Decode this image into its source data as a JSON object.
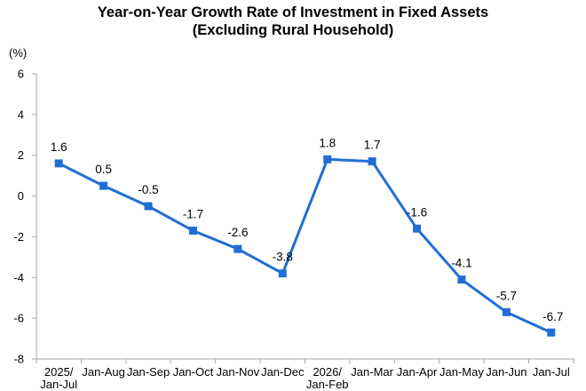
{
  "chart_data": {
    "type": "line",
    "title_lines": [
      "Year-on-Year Growth Rate of Investment in Fixed Assets",
      "(Excluding Rural Household)"
    ],
    "ylabel": "(%)",
    "xlabel": "",
    "ylim": [
      -8,
      6
    ],
    "yticks": [
      6,
      4,
      2,
      0,
      -2,
      -4,
      -6,
      -8
    ],
    "categories": [
      [
        "2025/",
        "Jan-Jul"
      ],
      [
        "Jan-Aug"
      ],
      [
        "Jan-Sep"
      ],
      [
        "Jan-Oct"
      ],
      [
        "Jan-Nov"
      ],
      [
        "Jan-Dec"
      ],
      [
        "2026/",
        "Jan-Feb"
      ],
      [
        "Jan-Mar"
      ],
      [
        "Jan-Apr"
      ],
      [
        "Jan-May"
      ],
      [
        "Jan-Jun"
      ],
      [
        "Jan-Jul"
      ]
    ],
    "series": [
      {
        "values": [
          1.6,
          0.5,
          -0.5,
          -1.7,
          -2.6,
          -3.8,
          1.8,
          1.7,
          -1.6,
          -4.1,
          -5.7,
          -6.7
        ],
        "labels": [
          "1.6",
          "0.5",
          "-0.5",
          "-1.7",
          "-2.6",
          "-3.8",
          "1.8",
          "1.7",
          "-1.6",
          "-4.1",
          "-5.7",
          "-6.7"
        ],
        "color": "#1f6fd6",
        "marker": "square"
      }
    ],
    "grid": false,
    "legend": "none"
  }
}
